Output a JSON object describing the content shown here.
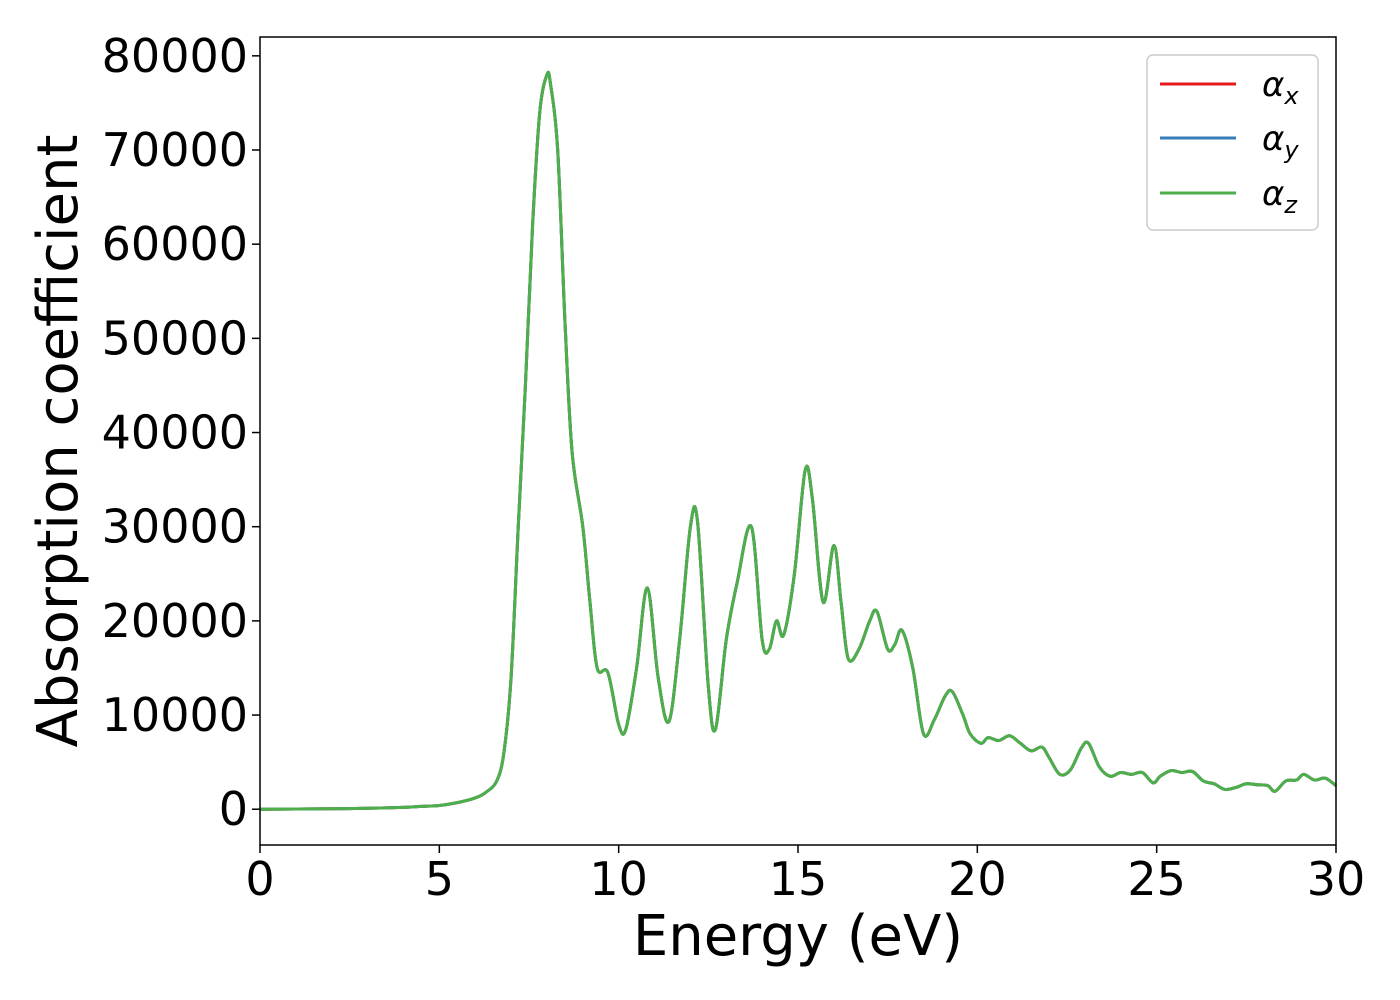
{
  "chart_data": {
    "type": "line",
    "xlabel": "Energy (eV)",
    "ylabel": "Absorption coefficient",
    "xlim": [
      0,
      30
    ],
    "ylim": [
      -3800,
      82000
    ],
    "x_ticks": [
      0,
      5,
      10,
      15,
      20,
      25,
      30
    ],
    "y_ticks": [
      0,
      10000,
      20000,
      30000,
      40000,
      50000,
      60000,
      70000,
      80000
    ],
    "grid": false,
    "legend_position": "top-right",
    "series": [
      {
        "name": "α",
        "subscript": "x",
        "color": "#e41a1c"
      },
      {
        "name": "α",
        "subscript": "y",
        "color": "#377eb8"
      },
      {
        "name": "α",
        "subscript": "z",
        "color": "#4daf4a"
      }
    ],
    "shared_values": {
      "x": [
        0,
        1,
        2,
        3,
        4,
        4.5,
        5,
        5.5,
        6,
        6.3,
        6.6,
        6.8,
        7.0,
        7.2,
        7.4,
        7.6,
        7.8,
        8.0,
        8.1,
        8.3,
        8.5,
        8.7,
        9.0,
        9.2,
        9.4,
        9.7,
        10.0,
        10.2,
        10.5,
        10.8,
        11.1,
        11.4,
        11.7,
        12.0,
        12.2,
        12.5,
        12.7,
        13.0,
        13.3,
        13.7,
        14.0,
        14.2,
        14.4,
        14.6,
        14.9,
        15.2,
        15.4,
        15.7,
        16.0,
        16.2,
        16.4,
        16.7,
        17.0,
        17.2,
        17.5,
        17.7,
        17.9,
        18.2,
        18.5,
        18.8,
        19.1,
        19.3,
        19.6,
        19.8,
        20.1,
        20.3,
        20.6,
        20.9,
        21.2,
        21.5,
        21.8,
        22.0,
        22.3,
        22.6,
        22.9,
        23.1,
        23.4,
        23.7,
        24.0,
        24.3,
        24.6,
        24.9,
        25.1,
        25.4,
        25.7,
        26.0,
        26.3,
        26.6,
        26.9,
        27.2,
        27.5,
        27.8,
        28.1,
        28.3,
        28.6,
        28.9,
        29.1,
        29.4,
        29.7,
        30.0
      ],
      "y": [
        0,
        20,
        50,
        100,
        200,
        300,
        400,
        700,
        1200,
        1800,
        3000,
        6000,
        14000,
        30000,
        45000,
        62000,
        74000,
        78000,
        77000,
        70000,
        52000,
        38000,
        30000,
        22000,
        15000,
        14500,
        9000,
        8500,
        15000,
        23500,
        14000,
        9300,
        18000,
        30000,
        30500,
        13000,
        8500,
        18000,
        24000,
        30000,
        18000,
        17000,
        20000,
        18500,
        25000,
        36000,
        33000,
        22000,
        28000,
        22000,
        16000,
        17000,
        20000,
        21000,
        17000,
        17500,
        19000,
        15000,
        8000,
        9500,
        12000,
        12500,
        10000,
        8000,
        7000,
        7600,
        7300,
        7800,
        7000,
        6200,
        6600,
        5500,
        3700,
        4200,
        6500,
        7000,
        4500,
        3500,
        3900,
        3700,
        3900,
        2800,
        3500,
        4100,
        3900,
        4000,
        3000,
        2700,
        2100,
        2300,
        2700,
        2600,
        2500,
        1900,
        3000,
        3100,
        3700,
        3100,
        3300,
        2500
      ]
    }
  }
}
